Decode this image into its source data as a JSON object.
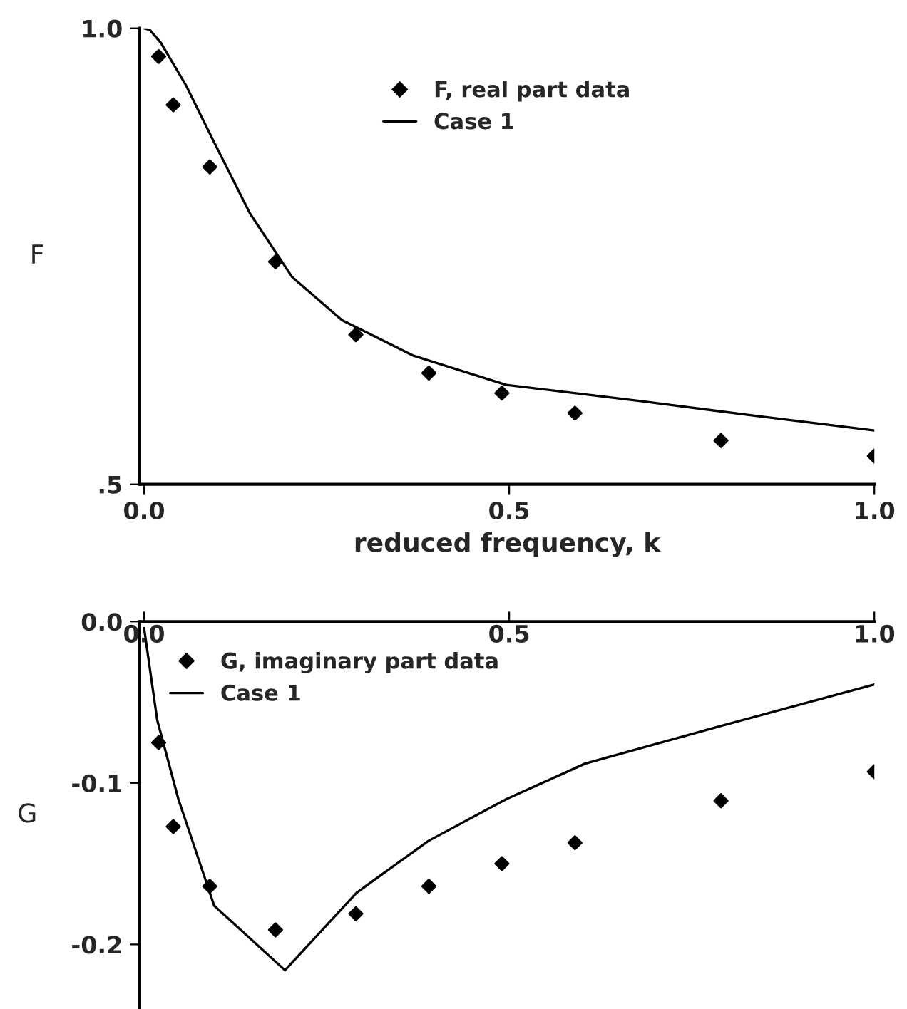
{
  "chart_data": [
    {
      "type": "scatter",
      "xlabel": "reduced frequency, k",
      "ylabel": "F",
      "xlim": [
        -0.006,
        1.0
      ],
      "ylim": [
        0.5,
        1.0
      ],
      "xticks": [
        {
          "value": 0,
          "label": "0.0"
        },
        {
          "value": 0.5,
          "label": "0.5"
        },
        {
          "value": 1.0,
          "label": "1.0"
        }
      ],
      "yticks": [
        {
          "value": 0.5,
          "label": ".5"
        },
        {
          "value": 1.0,
          "label": "1.0"
        }
      ],
      "legend": "top",
      "series": [
        {
          "name": "F, real part data",
          "marker": "diamond",
          "color": "#000000",
          "x": [
            0.02,
            0.04,
            0.09,
            0.18,
            0.29,
            0.39,
            0.49,
            0.59,
            0.79,
            1.0
          ],
          "values": [
            0.969,
            0.916,
            0.848,
            0.744,
            0.664,
            0.622,
            0.6,
            0.578,
            0.548,
            0.531
          ]
        },
        {
          "name": "Case 1",
          "type": "line",
          "marker": "none",
          "color": "#000000",
          "x": [
            0.0,
            0.008,
            0.023,
            0.057,
            0.096,
            0.145,
            0.203,
            0.271,
            0.369,
            0.496,
            0.682,
            0.838,
            1.0
          ],
          "values": [
            1.0,
            0.998,
            0.984,
            0.938,
            0.875,
            0.797,
            0.727,
            0.68,
            0.641,
            0.609,
            0.591,
            0.575,
            0.559
          ]
        }
      ]
    },
    {
      "type": "scatter",
      "ylabel": "G",
      "xlim": [
        -0.006,
        1.0
      ],
      "ylim": [
        -0.24,
        0.0
      ],
      "xticks": [
        {
          "value": 0,
          "label": "0.0"
        },
        {
          "value": 0.5,
          "label": "0.5"
        },
        {
          "value": 1.0,
          "label": "1.0"
        }
      ],
      "yticks": [
        {
          "value": 0.0,
          "label": "0.0"
        },
        {
          "value": -0.1,
          "label": "-0.1"
        },
        {
          "value": -0.2,
          "label": "-0.2"
        }
      ],
      "legend": "top left",
      "series": [
        {
          "name": "G, imaginary part data",
          "marker": "diamond",
          "color": "#000000",
          "x": [
            0.02,
            0.04,
            0.09,
            0.18,
            0.29,
            0.39,
            0.49,
            0.59,
            0.79,
            1.0
          ],
          "values": [
            -0.075,
            -0.127,
            -0.164,
            -0.191,
            -0.181,
            -0.164,
            -0.15,
            -0.137,
            -0.111,
            -0.093
          ]
        },
        {
          "name": "Case 1",
          "type": "line",
          "marker": "none",
          "color": "#000000",
          "x": [
            0.0,
            0.018,
            0.047,
            0.096,
            0.193,
            0.291,
            0.389,
            0.496,
            0.604,
            0.779,
            1.0
          ],
          "values": [
            -0.004,
            -0.061,
            -0.11,
            -0.176,
            -0.216,
            -0.168,
            -0.136,
            -0.11,
            -0.088,
            -0.066,
            -0.039
          ]
        }
      ]
    }
  ]
}
